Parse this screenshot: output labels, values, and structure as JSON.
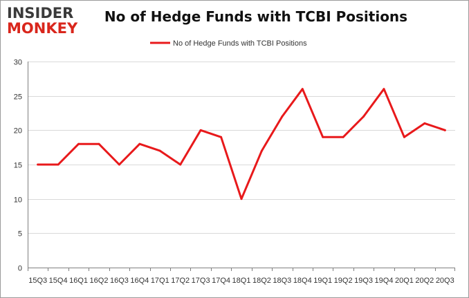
{
  "logo": {
    "line1": "INSIDER",
    "line2": "MONKEY"
  },
  "colors": {
    "series": "#e8191b",
    "grid": "#d9d9d9",
    "axis": "#7f7f7f"
  },
  "chart_data": {
    "type": "line",
    "title": "No of Hedge Funds with TCBI Positions",
    "xlabel": "",
    "ylabel": "",
    "ylim": [
      0,
      30
    ],
    "yticks": [
      0,
      5,
      10,
      15,
      20,
      25,
      30
    ],
    "grid": true,
    "legend_position": "top-center",
    "categories": [
      "15Q3",
      "15Q4",
      "16Q1",
      "16Q2",
      "16Q3",
      "16Q4",
      "17Q1",
      "17Q2",
      "17Q3",
      "17Q4",
      "18Q1",
      "18Q2",
      "18Q3",
      "18Q4",
      "19Q1",
      "19Q2",
      "19Q3",
      "19Q4",
      "20Q1",
      "20Q2",
      "20Q3"
    ],
    "series": [
      {
        "name": "No of Hedge Funds with TCBI Positions",
        "values": [
          15,
          15,
          18,
          18,
          15,
          18,
          17,
          15,
          20,
          19,
          10,
          17,
          22,
          26,
          19,
          19,
          22,
          26,
          19,
          21,
          20
        ]
      }
    ]
  }
}
